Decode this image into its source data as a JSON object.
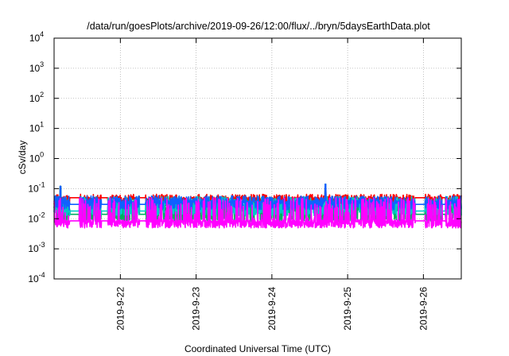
{
  "chart_data": {
    "type": "line",
    "title": "/data/run/goesPlots/archive/2019-09-26/12:00/flux/../bryn/5daysEarthData.plot",
    "xlabel": "Coordinated Universal Time (UTC)",
    "ylabel": "cSv/day",
    "yscale": "log",
    "ylim": [
      0.0001,
      10000
    ],
    "y_ticks": [
      {
        "value": 0.0001,
        "base": "10",
        "exp": "-4"
      },
      {
        "value": 0.001,
        "base": "10",
        "exp": "-3"
      },
      {
        "value": 0.01,
        "base": "10",
        "exp": "-2"
      },
      {
        "value": 0.1,
        "base": "10",
        "exp": "-1"
      },
      {
        "value": 1,
        "base": "10",
        "exp": "0"
      },
      {
        "value": 10,
        "base": "10",
        "exp": "1"
      },
      {
        "value": 100,
        "base": "10",
        "exp": "2"
      },
      {
        "value": 1000,
        "base": "10",
        "exp": "3"
      },
      {
        "value": 10000,
        "base": "10",
        "exp": "4"
      }
    ],
    "xlim": [
      "2019-09-21 03:00",
      "2019-09-26 12:00"
    ],
    "x_ticks": [
      {
        "value": "2019-09-22 00:00",
        "label": "2019-9-22"
      },
      {
        "value": "2019-09-23 00:00",
        "label": "2019-9-23"
      },
      {
        "value": "2019-09-24 00:00",
        "label": "2019-9-24"
      },
      {
        "value": "2019-09-25 00:00",
        "label": "2019-9-25"
      },
      {
        "value": "2019-09-26 00:00",
        "label": "2019-9-26"
      }
    ],
    "grid": true,
    "legend": "none",
    "series": [
      {
        "color": "#ff0000",
        "base": 0.045,
        "low": 0.03,
        "high": 0.065,
        "gap_value": 0.05
      },
      {
        "color": "#00b060",
        "base": 0.02,
        "low": 0.009,
        "high": 0.045,
        "gap_value": 0.014
      },
      {
        "color": "#00c8c8",
        "base": 0.03,
        "low": 0.014,
        "high": 0.055,
        "gap_value": 0.018
      },
      {
        "color": "#1060ff",
        "base": 0.036,
        "low": 0.022,
        "high": 0.058,
        "gap_value": 0.03
      },
      {
        "color": "#ff00ff",
        "base": 0.008,
        "low": 0.0055,
        "high": 0.05,
        "gap_value": 0.0085
      }
    ],
    "data_gaps": [
      [
        "2019-09-21 08:00",
        "2019-09-21 11:00"
      ],
      [
        "2019-09-21 18:00",
        "2019-09-21 20:00"
      ],
      [
        "2019-09-22 06:00",
        "2019-09-22 08:00"
      ],
      [
        "2019-09-25 21:30",
        "2019-09-26 00:30"
      ],
      [
        "2019-09-26 06:00",
        "2019-09-26 07:00"
      ]
    ],
    "spikes": [
      {
        "x": "2019-09-21 05:00",
        "y": 0.12
      },
      {
        "x": "2019-09-24 17:00",
        "y": 0.14
      }
    ]
  }
}
